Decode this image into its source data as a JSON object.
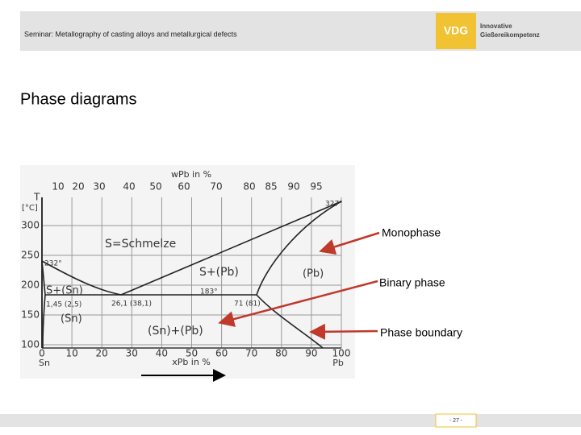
{
  "header": {
    "title": "Seminar: Metallography of casting alloys and metallurgical defects",
    "logo": {
      "mark": "VDG",
      "line1": "Innovative",
      "line2": "Gießereikompetenz"
    }
  },
  "slide": {
    "title": "Phase diagrams"
  },
  "diagram": {
    "top_axis_label": "wPb in %",
    "top_ticks": [
      "10",
      "20",
      "30",
      "40",
      "50",
      "60",
      "70",
      "80",
      "85",
      "90",
      "95"
    ],
    "y_axis_label": "T",
    "y_unit": "[°C]",
    "y_ticks": [
      "300",
      "250",
      "200",
      "150",
      "100"
    ],
    "bottom_ticks": [
      "0",
      "10",
      "20",
      "30",
      "40",
      "50",
      "60",
      "70",
      "80",
      "90",
      "100"
    ],
    "bottom_left": "Sn",
    "bottom_right": "Pb",
    "bottom_axis_label": "xPb in %",
    "regions": [
      "S=Schmelze",
      "S+(Pb)",
      "S+(Sn)",
      "(Pb)",
      "(Sn)",
      "(Sn)+(Pb)"
    ],
    "points": [
      "327°",
      "232°",
      "183°",
      "1,45 (2,5)",
      "26,1 (38,1)",
      "71 (81)"
    ]
  },
  "annotations": [
    "Monophase",
    "Binary phase",
    "Phase boundary"
  ],
  "footer": {
    "page": "- 27 -"
  }
}
